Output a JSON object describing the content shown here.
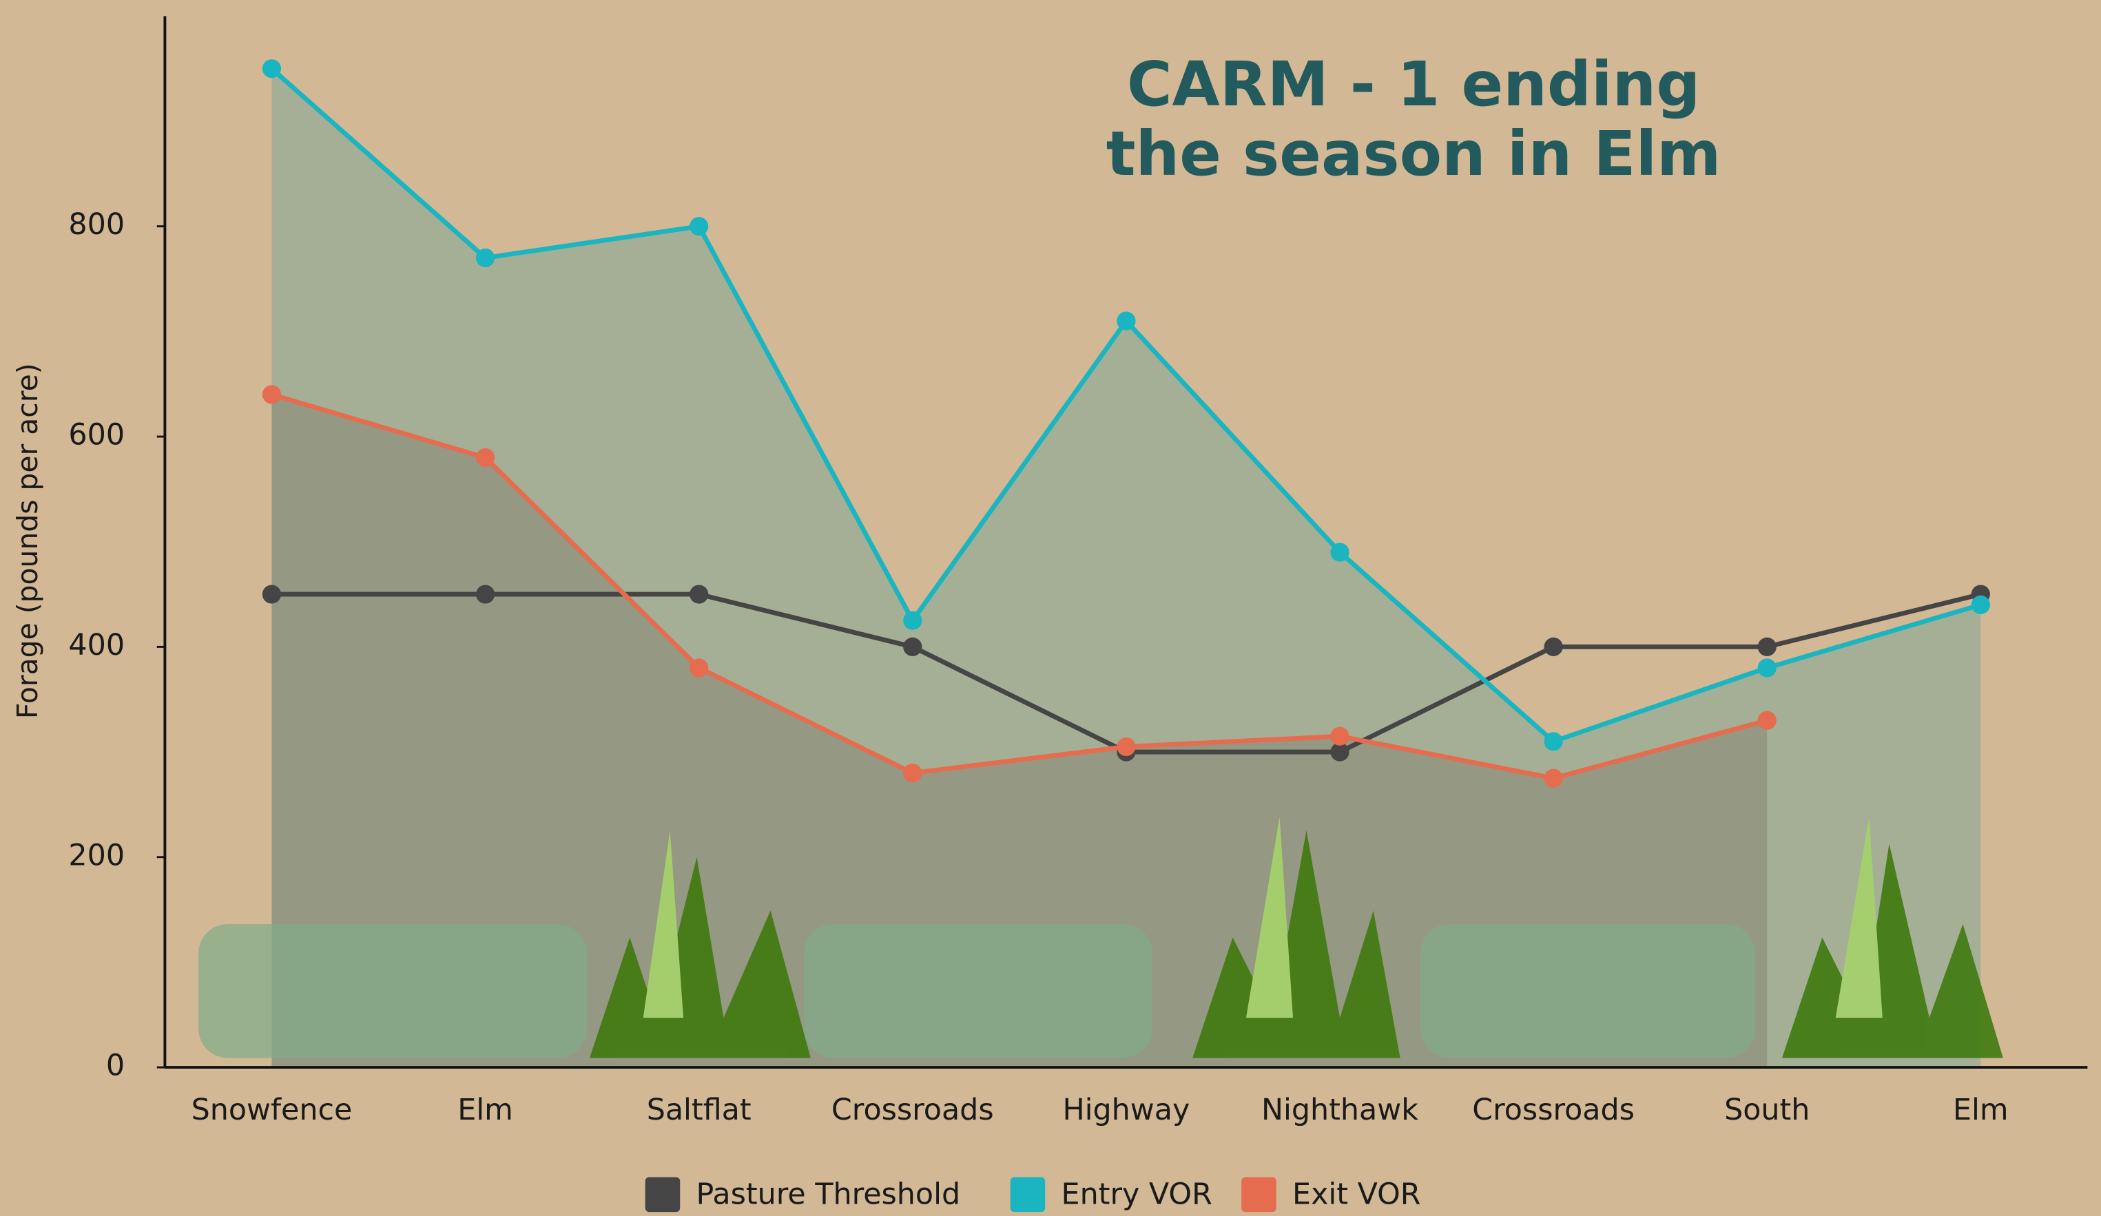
{
  "chart_data": {
    "type": "line",
    "title": [
      "CARM - 1 ending",
      "the season in Elm"
    ],
    "y_label": "Forage (pounds per acre)",
    "categories": [
      "Snowfence",
      "Elm",
      "Saltflat",
      "Crossroads",
      "Highway",
      "Nighthawk",
      "Crossroads",
      "South",
      "Elm"
    ],
    "series": [
      {
        "name": "Pasture Threshold",
        "color": "#454545",
        "values": [
          450,
          450,
          450,
          400,
          300,
          300,
          400,
          400,
          450
        ]
      },
      {
        "name": "Entry VOR",
        "color": "#1ab5c1",
        "values": [
          950,
          770,
          800,
          425,
          710,
          490,
          310,
          380,
          440
        ]
      },
      {
        "name": "Exit VOR",
        "color": "#e56c4f",
        "values": [
          640,
          580,
          380,
          280,
          305,
          315,
          275,
          330,
          null
        ]
      }
    ],
    "ylim": [
      0,
      1000
    ],
    "yticks": [
      0,
      200,
      400,
      600,
      800
    ],
    "grid": false,
    "legend": "bottom"
  }
}
